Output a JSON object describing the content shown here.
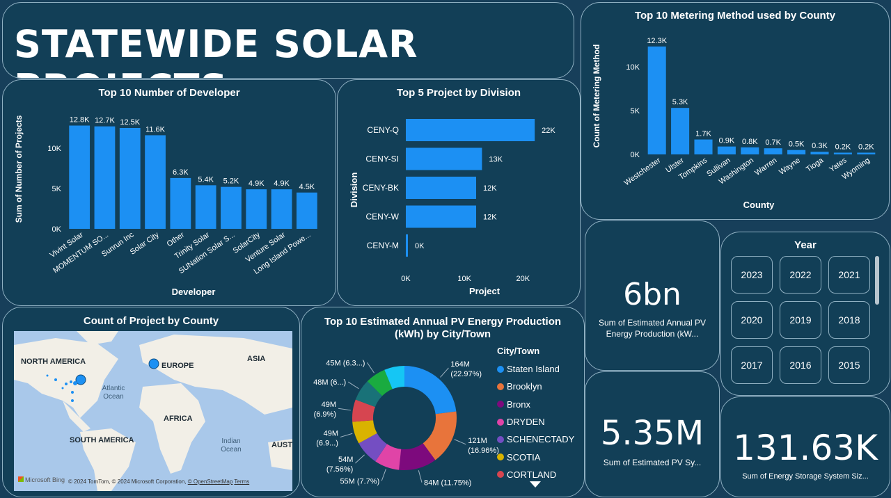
{
  "header": {
    "title": "STATEWIDE SOLAR PROJECTS"
  },
  "developer_chart": {
    "title": "Top 10 Number of Developer",
    "xlabel": "Developer",
    "ylabel": "Sum of Number of Projects",
    "yticks": [
      "0K",
      "5K",
      "10K"
    ],
    "ytick_values": [
      0,
      5000,
      10000
    ],
    "categories": [
      "Vivint Solar",
      "MOMENTUM SO...",
      "Sunrun Inc",
      "Solar City",
      "Other",
      "Trinity Solar",
      "SUNation Solar S...",
      "SolarCity",
      "Venture Solar",
      "Long Island Powe..."
    ],
    "values": [
      12800,
      12700,
      12500,
      11600,
      6300,
      5400,
      5200,
      4900,
      4900,
      4500
    ],
    "labels": [
      "12.8K",
      "12.7K",
      "12.5K",
      "11.6K",
      "6.3K",
      "5.4K",
      "5.2K",
      "4.9K",
      "4.9K",
      "4.5K"
    ],
    "ymax": 15000
  },
  "division_chart": {
    "title": "Top 5 Project by Division",
    "xlabel": "Project",
    "ylabel": "Division",
    "xticks": [
      "0K",
      "10K",
      "20K"
    ],
    "xtick_values": [
      0,
      10000,
      20000
    ],
    "categories": [
      "CENY-Q",
      "CENY-SI",
      "CENY-BK",
      "CENY-W",
      "CENY-M"
    ],
    "values": [
      22000,
      13000,
      12000,
      12000,
      300
    ],
    "labels": [
      "22K",
      "13K",
      "12K",
      "12K",
      "0K"
    ],
    "xmax": 24000
  },
  "metering_chart": {
    "title": "Top 10 Metering Method used by County",
    "xlabel": "County",
    "ylabel": "Count of Metering Method",
    "yticks": [
      "0K",
      "5K",
      "10K"
    ],
    "ytick_values": [
      0,
      5000,
      10000
    ],
    "categories": [
      "Westchester",
      "Ulster",
      "Tompkins",
      "Sullivan",
      "Washington",
      "Warren",
      "Wayne",
      "Tioga",
      "Yates",
      "Wyoming"
    ],
    "values": [
      12300,
      5300,
      1700,
      900,
      800,
      700,
      500,
      300,
      200,
      200
    ],
    "labels": [
      "12.3K",
      "5.3K",
      "1.7K",
      "0.9K",
      "0.8K",
      "0.7K",
      "0.5K",
      "0.3K",
      "0.2K",
      "0.2K"
    ],
    "ymax": 13000
  },
  "map_card": {
    "title": "Count of Project by County",
    "labels": {
      "north_america": "NORTH AMERICA",
      "europe": "EUROPE",
      "asia": "ASIA",
      "africa": "AFRICA",
      "south_america": "SOUTH AMERICA",
      "atlantic": "Atlantic Ocean",
      "indian": "Indian Ocean",
      "aust": "AUST"
    },
    "bing": "Microsoft Bing",
    "copyright": "© 2024 TomTom, © 2024 Microsoft Corporation,",
    "osm": "© OpenStreetMap",
    "terms": "Terms"
  },
  "donut_chart": {
    "title_line1": "Top 10 Estimated Annual PV Energy Production",
    "title_line2": "(kWh) by City/Town",
    "legend_title": "City/Town",
    "legend": [
      "Staten Island",
      "Brooklyn",
      "Bronx",
      "DRYDEN",
      "SCHENECTADY",
      "SCOTIA",
      "CORTLAND"
    ],
    "slices": [
      {
        "value": 22.97,
        "color": "#1c90f3",
        "label1": "164M",
        "label2": "(22.97%)"
      },
      {
        "value": 16.96,
        "color": "#e8743b",
        "label1": "121M",
        "label2": "(16.96%)"
      },
      {
        "value": 11.75,
        "color": "#7d0a7d",
        "label1": "84M (11.75%)",
        "label2": ""
      },
      {
        "value": 7.7,
        "color": "#e044a7",
        "label1": "55M (7.7%)",
        "label2": ""
      },
      {
        "value": 7.56,
        "color": "#744ec2",
        "label1": "54M",
        "label2": "(7.56%)"
      },
      {
        "value": 6.9,
        "color": "#d9b300",
        "label1": "49M",
        "label2": "(6.9...)"
      },
      {
        "value": 6.9,
        "color": "#d64550",
        "label1": "49M",
        "label2": "(6.9%)"
      },
      {
        "value": 6.7,
        "color": "#197278",
        "label1": "48M (6...)",
        "label2": ""
      },
      {
        "value": 6.3,
        "color": "#1aab40",
        "label1": "45M (6.3...)",
        "label2": ""
      },
      {
        "value": 6.26,
        "color": "#15c6f4",
        "label1": "",
        "label2": ""
      }
    ]
  },
  "kpi_energy": {
    "value": "6bn",
    "label": "Sum of Estimated Annual PV Energy Production (kW..."
  },
  "kpi_pv": {
    "value": "5.35M",
    "label": "Sum of Estimated PV Sy..."
  },
  "kpi_storage": {
    "value": "131.63K",
    "label": "Sum of Energy Storage System Siz..."
  },
  "year_slicer": {
    "title": "Year",
    "years": [
      "2023",
      "2022",
      "2021",
      "2020",
      "2019",
      "2018",
      "2017",
      "2016",
      "2015"
    ]
  },
  "colors": {
    "bar": "#1c90f3",
    "background": "#173f5a",
    "card": "#123f57",
    "border": "#8fb0c2"
  }
}
